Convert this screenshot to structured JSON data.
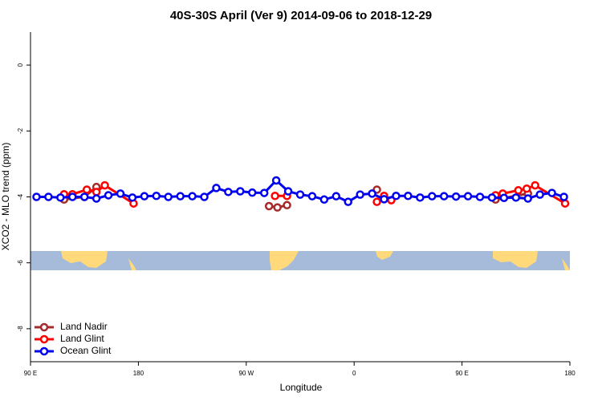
{
  "chart_data": {
    "type": "line",
    "title": "40S-30S April (Ver 9)   2014-09-06 to 2018-12-29",
    "x_label": "Longitude",
    "y_label": "XCO2 - MLO trend (ppm)",
    "xlim": [
      90,
      540
    ],
    "ylim": [
      -9,
      1
    ],
    "xticks": [
      {
        "value": 90,
        "label": "90 E"
      },
      180,
      {
        "value": 270,
        "label": "90 W"
      },
      {
        "value": 360,
        "label": "0"
      },
      {
        "value": 450,
        "label": "90 E"
      },
      {
        "value": 540,
        "label": "180"
      }
    ],
    "yticks": [
      0,
      -2,
      -4,
      -6,
      -8
    ],
    "legend": "bottom-left",
    "series": [
      {
        "name": "Land Nadir",
        "color": "#a52a2a",
        "x": [
          118,
          135,
          145,
          null,
          289,
          296,
          304,
          null,
          379,
          null,
          478,
          505
        ],
        "values": [
          -4.08,
          -4.0,
          -3.7,
          null,
          -4.28,
          -4.32,
          -4.25,
          null,
          -3.78,
          null,
          -4.08,
          -3.9
        ]
      },
      {
        "name": "Land Glint",
        "color": "#ff0000",
        "x": [
          118,
          125,
          137,
          145,
          152,
          176,
          null,
          294,
          304,
          null,
          379,
          385,
          391,
          null,
          478,
          484,
          497,
          504,
          511,
          536
        ],
        "values": [
          -3.92,
          -3.92,
          -3.78,
          -3.85,
          -3.65,
          -4.2,
          null,
          -3.97,
          -3.97,
          null,
          -4.15,
          -3.97,
          -4.1,
          null,
          -3.95,
          -3.9,
          -3.8,
          -3.75,
          -3.65,
          -4.2
        ]
      },
      {
        "name": "Ocean Glint",
        "color": "#0000ee",
        "x": [
          95,
          105,
          115,
          125,
          135,
          145,
          155,
          165,
          175,
          185,
          195,
          205,
          215,
          225,
          235,
          245,
          255,
          265,
          275,
          285,
          295,
          305,
          315,
          325,
          335,
          345,
          355,
          365,
          375,
          385,
          395,
          405,
          415,
          425,
          435,
          445,
          455,
          465,
          475,
          485,
          495,
          505,
          515,
          525,
          535
        ],
        "values": [
          -4.0,
          -4.0,
          -4.02,
          -4.0,
          -4.0,
          -4.05,
          -3.95,
          -3.9,
          -4.02,
          -3.98,
          -3.97,
          -4.0,
          -3.98,
          -3.98,
          -4.0,
          -3.73,
          -3.85,
          -3.83,
          -3.87,
          -3.88,
          -3.5,
          -3.83,
          -3.93,
          -3.98,
          -4.08,
          -3.98,
          -4.15,
          -3.93,
          -3.9,
          -4.07,
          -3.97,
          -3.97,
          -4.02,
          -3.98,
          -3.98,
          -3.99,
          -3.98,
          -4.0,
          -4.02,
          -4.03,
          -4.02,
          -4.05,
          -3.93,
          -3.88,
          -4.0
        ]
      }
    ]
  }
}
